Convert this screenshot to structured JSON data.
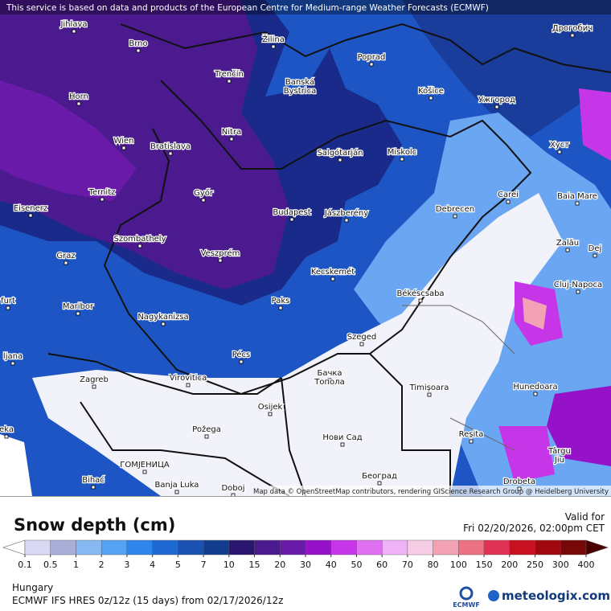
{
  "header": {
    "notice": "This service is based on data and products of the European Centre for Medium-range Weather Forecasts (ECMWF)"
  },
  "map": {
    "cities": [
      [
        "Jihlava"
      ],
      [
        "Brno"
      ],
      [
        "Žilina"
      ],
      [
        "Poprad"
      ],
      [
        "Дрогобич"
      ],
      [
        "Trenčín"
      ],
      [
        "Banská",
        "Bystrica"
      ],
      [
        "Horn"
      ],
      [
        "Košice"
      ],
      [
        "Ужгород"
      ],
      [
        "Nitra"
      ],
      [
        "Wien"
      ],
      [
        "Bratislava"
      ],
      [
        "Salgótarján"
      ],
      [
        "Miskolc"
      ],
      [
        "Хуст"
      ],
      [
        "Ternitz"
      ],
      [
        "Győr"
      ],
      [
        "Carei"
      ],
      [
        "Baia Mare"
      ],
      [
        "Eisenerz"
      ],
      [
        "Budapest"
      ],
      [
        "Jászberény"
      ],
      [
        "Debrecen"
      ],
      [
        "Szombathely"
      ],
      [
        "Zalău"
      ],
      [
        "Graz"
      ],
      [
        "Veszprém"
      ],
      [
        "Dej"
      ],
      [
        "Kecskemét"
      ],
      [
        "Cluj-Napoca"
      ],
      [
        "Békéscsaba"
      ],
      [
        "Maribor"
      ],
      [
        "Paks"
      ],
      [
        "Nagykanizsa"
      ],
      [
        "Szeged"
      ],
      [
        "Pécs"
      ],
      [
        "Zagreb"
      ],
      [
        "Virovitica"
      ],
      [
        "Бачка",
        "Топола"
      ],
      [
        "Timișoara"
      ],
      [
        "Hunedoara"
      ],
      [
        "Osijek"
      ],
      [
        "Požega"
      ],
      [
        "Нови Сад"
      ],
      [
        "Reșita"
      ],
      [
        "Târgu",
        "Jiu"
      ],
      [
        "ГОМЈЕНИЦА"
      ],
      [
        "Bihać"
      ],
      [
        "Banja Luka"
      ],
      [
        "Doboj"
      ],
      [
        "Београд"
      ],
      [
        "Drobeta"
      ],
      [
        "furt"
      ],
      [
        "ljana"
      ],
      [
        "eka"
      ]
    ],
    "attribution": "Map data © OpenStreetMap contributors, rendering GIScience Research Group @ Heidelberg University"
  },
  "legend": {
    "title": "Snow depth (cm)",
    "valid_label": "Valid for",
    "valid_time": "Fri 02/20/2026, 02:00pm CET",
    "ticks": [
      0.1,
      0.5,
      1,
      2,
      3,
      4,
      5,
      7,
      10,
      15,
      20,
      30,
      40,
      50,
      60,
      70,
      80,
      100,
      150,
      200,
      250,
      300,
      400
    ],
    "under_color": "#ffffff",
    "over_color": "#4a0000",
    "colors": [
      "#d8d8f4",
      "#a9aed8",
      "#86b8f2",
      "#56a2f2",
      "#2e86ea",
      "#1f69d2",
      "#1b52b2",
      "#123d8e",
      "#2a166e",
      "#4a1a8e",
      "#6a1aa8",
      "#9612c8",
      "#c636e8",
      "#e070f2",
      "#f0b2f6",
      "#f6cde4",
      "#f2a2b4",
      "#ea7282",
      "#e03254",
      "#c81020",
      "#a00810",
      "#780808"
    ]
  },
  "footer": {
    "region": "Hungary",
    "model": "ECMWF IFS HRES 0z/12z (15 days) from 02/17/2026/12z",
    "logo_ecmwf": "ECMWF",
    "logo_site": "meteologix.com"
  }
}
